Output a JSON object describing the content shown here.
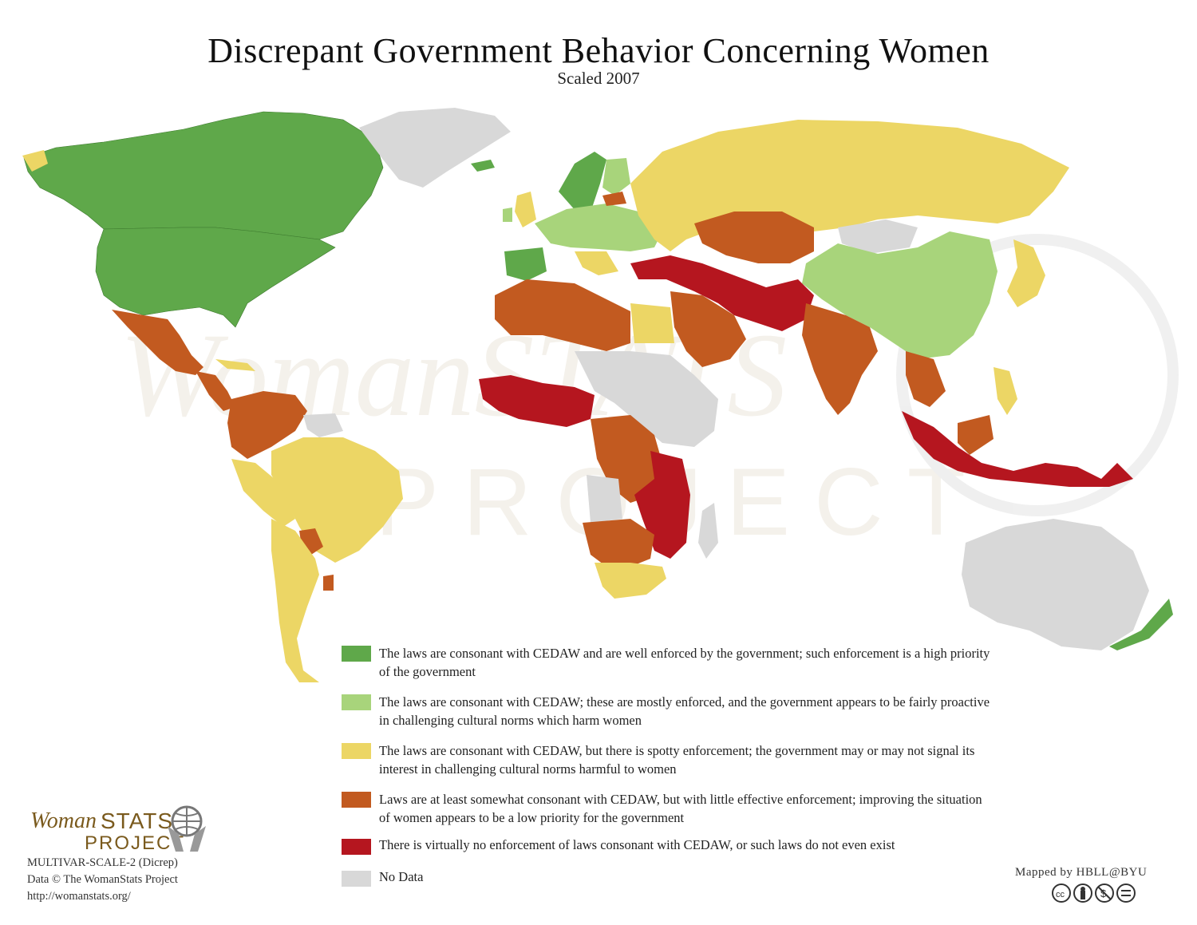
{
  "header": {
    "title": "Discrepant Government Behavior Concerning Women",
    "subtitle": "Scaled 2007"
  },
  "watermark": {
    "line1": "WomanSTATS",
    "line2": "PROJECT"
  },
  "legend": {
    "items": [
      {
        "color": "#5fa84a",
        "label": "The laws are consonant with CEDAW and are well enforced by the government; such enforcement is a high priority of the government"
      },
      {
        "color": "#a8d47b",
        "label": "The laws are consonant with CEDAW; these are mostly enforced, and the government appears to be fairly proactive in challenging cultural norms which harm women"
      },
      {
        "color": "#ecd665",
        "label": "The laws are consonant with CEDAW, but there is spotty enforcement; the government may or may not signal its interest in challenging cultural norms harmful to women"
      },
      {
        "color": "#c25a20",
        "label": "Laws are at least somewhat consonant with CEDAW, but with little effective enforcement; improving the situation of women appears to be a low priority for the government"
      },
      {
        "color": "#b5161f",
        "label": "There is virtually no enforcement of laws consonant with CEDAW, or such laws do not even exist"
      },
      {
        "color": "#d8d8d8",
        "label": "No Data"
      }
    ]
  },
  "logo": {
    "woman": "Woman",
    "stats": "STATS",
    "project": "PROJECT"
  },
  "credits": {
    "code": "MULTIVAR-SCALE-2 (Dicrep)",
    "data": "Data © The WomanStats Project",
    "url": "http://womanstats.org/",
    "mapped_by": "Mapped by HBLL@BYU"
  },
  "license_icons": [
    "cc-icon",
    "by-icon",
    "nc-icon",
    "nd-icon"
  ],
  "colors": {
    "dark_green": "#5fa84a",
    "light_green": "#a8d47b",
    "yellow": "#ecd665",
    "orange": "#c25a20",
    "red": "#b5161f",
    "gray": "#d8d8d8"
  }
}
